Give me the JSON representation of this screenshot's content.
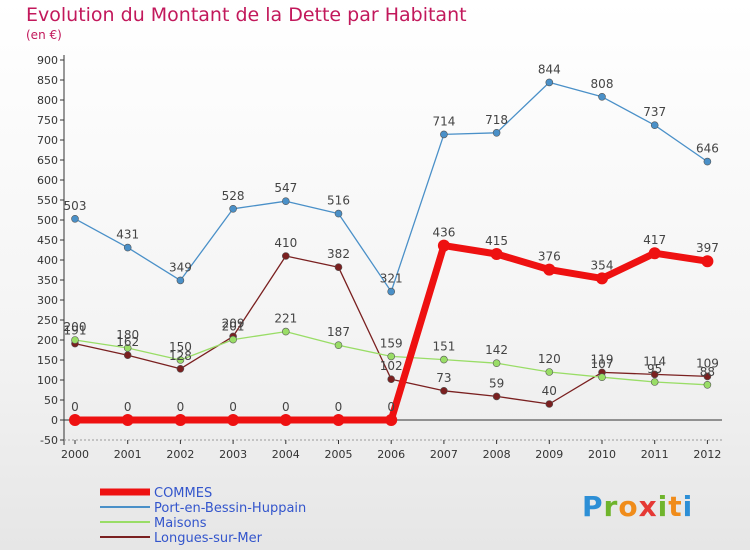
{
  "title": "Evolution du Montant de la Dette par Habitant",
  "subtitle": "(en €)",
  "logo": "Proxiti",
  "chart_data": {
    "type": "line",
    "title": "Evolution du Montant de la Dette par Habitant",
    "subtitle": "(en €)",
    "x": [
      2000,
      2001,
      2002,
      2003,
      2004,
      2005,
      2006,
      2007,
      2008,
      2009,
      2010,
      2011,
      2012
    ],
    "ylim": [
      -50,
      900
    ],
    "yticks": [
      -50,
      0,
      50,
      100,
      150,
      200,
      250,
      300,
      350,
      400,
      450,
      500,
      550,
      600,
      650,
      700,
      750,
      800,
      850,
      900
    ],
    "grid": false,
    "legend_position": "bottom-left",
    "series": [
      {
        "name": "COMMES",
        "color": "#ee1111",
        "values": [
          0,
          0,
          0,
          0,
          0,
          0,
          0,
          436,
          415,
          376,
          354,
          417,
          397
        ]
      },
      {
        "name": "Port-en-Bessin-Huppain",
        "color": "#4a90c8",
        "values": [
          503,
          431,
          349,
          528,
          547,
          516,
          321,
          714,
          718,
          844,
          808,
          737,
          646
        ]
      },
      {
        "name": "Maisons",
        "color": "#99dd66",
        "values": [
          200,
          180,
          150,
          201,
          221,
          187,
          159,
          151,
          142,
          120,
          107,
          95,
          88
        ]
      },
      {
        "name": "Longues-sur-Mer",
        "color": "#7a2020",
        "values": [
          191,
          162,
          128,
          209,
          410,
          382,
          102,
          73,
          59,
          40,
          119,
          114,
          109
        ]
      }
    ]
  }
}
